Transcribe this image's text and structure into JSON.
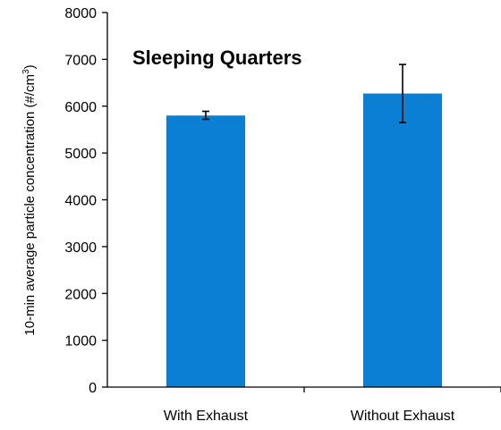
{
  "chart_data": {
    "type": "bar",
    "title": "Sleeping Quarters",
    "ylabel_main": "10-min average particle concentration (#/cm",
    "ylabel_sup": "3",
    "ylabel_end": ")",
    "xlabel": "",
    "categories": [
      "With Exhaust",
      "Without Exhaust"
    ],
    "values": [
      5800,
      6270
    ],
    "error_low": [
      5720,
      5650
    ],
    "error_high": [
      5890,
      6890
    ],
    "ylim": [
      0,
      8000
    ],
    "yticks": [
      "0",
      "1000",
      "2000",
      "3000",
      "4000",
      "5000",
      "6000",
      "7000",
      "8000"
    ],
    "bar_color": "#0a7fd3",
    "grid": false,
    "legend": "none"
  }
}
